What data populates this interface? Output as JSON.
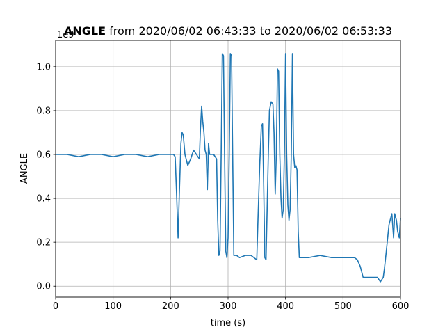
{
  "chart_data": {
    "type": "line",
    "title_bold": "ANGLE",
    "title_rest": " from 2020/06/02 06:43:33 to 2020/06/02 06:53:33",
    "xlabel": "time (s)",
    "ylabel": "ANGLE",
    "offset_text": "1e9",
    "xlim": [
      0,
      600
    ],
    "ylim": [
      -0.05,
      1.12
    ],
    "xticks": [
      0,
      100,
      200,
      300,
      400,
      500,
      600
    ],
    "xtick_labels": [
      "0",
      "100",
      "200",
      "300",
      "400",
      "500",
      "600"
    ],
    "yticks": [
      0.0,
      0.2,
      0.4,
      0.6,
      0.8,
      1.0
    ],
    "ytick_labels": [
      "0.0",
      "0.2",
      "0.4",
      "0.6",
      "0.8",
      "1.0"
    ],
    "grid": true,
    "color": "#1f77b4",
    "series": [
      {
        "x": [
          0,
          20,
          40,
          60,
          80,
          100,
          120,
          140,
          160,
          180,
          200,
          205,
          208,
          210,
          212,
          213,
          215,
          218,
          220,
          222,
          225,
          230,
          235,
          240,
          245,
          250,
          252,
          254,
          256,
          258,
          260,
          262,
          264,
          266,
          268,
          270,
          275,
          280,
          282,
          284,
          286,
          288,
          290,
          292,
          294,
          296,
          298,
          300,
          302,
          304,
          306,
          308,
          310,
          315,
          320,
          330,
          340,
          350,
          352,
          355,
          358,
          360,
          362,
          364,
          366,
          368,
          370,
          372,
          375,
          378,
          380,
          382,
          384,
          386,
          388,
          390,
          392,
          394,
          396,
          398,
          400,
          402,
          404,
          406,
          408,
          410,
          412,
          414,
          416,
          418,
          420,
          422,
          424,
          430,
          440,
          460,
          480,
          500,
          520,
          525,
          530,
          535,
          540,
          550,
          560,
          565,
          570,
          572,
          575,
          580,
          582,
          585,
          588,
          590,
          593,
          595,
          598,
          600
        ],
        "y": [
          0.6,
          0.6,
          0.59,
          0.6,
          0.6,
          0.59,
          0.6,
          0.6,
          0.59,
          0.6,
          0.6,
          0.6,
          0.59,
          0.45,
          0.3,
          0.22,
          0.4,
          0.65,
          0.7,
          0.69,
          0.6,
          0.55,
          0.58,
          0.62,
          0.6,
          0.58,
          0.72,
          0.82,
          0.75,
          0.7,
          0.62,
          0.6,
          0.44,
          0.65,
          0.6,
          0.6,
          0.6,
          0.58,
          0.3,
          0.14,
          0.16,
          0.6,
          1.06,
          1.05,
          0.6,
          0.16,
          0.13,
          0.22,
          0.6,
          1.06,
          1.05,
          0.6,
          0.14,
          0.14,
          0.13,
          0.14,
          0.14,
          0.12,
          0.3,
          0.55,
          0.73,
          0.74,
          0.45,
          0.13,
          0.12,
          0.35,
          0.6,
          0.8,
          0.84,
          0.83,
          0.7,
          0.42,
          0.6,
          0.99,
          0.98,
          0.6,
          0.4,
          0.31,
          0.35,
          0.6,
          1.06,
          0.6,
          0.37,
          0.3,
          0.35,
          0.6,
          1.06,
          0.6,
          0.54,
          0.55,
          0.53,
          0.25,
          0.13,
          0.13,
          0.13,
          0.14,
          0.13,
          0.13,
          0.13,
          0.12,
          0.09,
          0.04,
          0.04,
          0.04,
          0.04,
          0.02,
          0.04,
          0.08,
          0.15,
          0.28,
          0.3,
          0.33,
          0.22,
          0.33,
          0.3,
          0.25,
          0.22,
          0.31
        ]
      }
    ]
  }
}
